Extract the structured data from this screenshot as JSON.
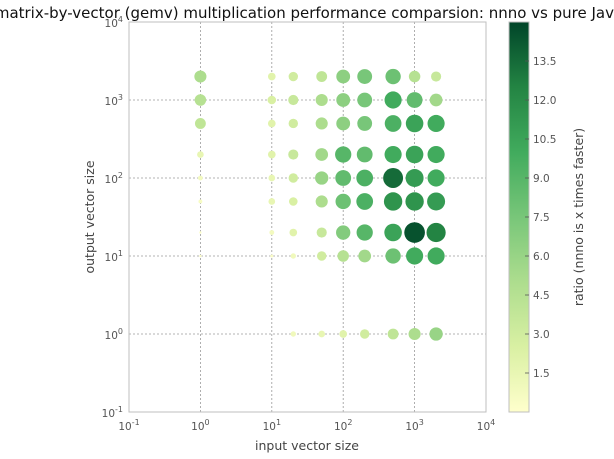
{
  "chart_data": {
    "type": "scatter",
    "title": "matrix-by-vector (gemv) multiplication performance comparsion: nnno vs pure Java",
    "xlabel": "input vector size",
    "ylabel": "output vector size",
    "colorbar_label": "ratio (nnno is x times faster)",
    "xscale": "log",
    "yscale": "log",
    "xlim": [
      0.1,
      10000
    ],
    "ylim": [
      0.1,
      10000
    ],
    "xticks": [
      {
        "value": 0.1,
        "base": "10",
        "exp": "-1"
      },
      {
        "value": 1,
        "base": "10",
        "exp": "0"
      },
      {
        "value": 10,
        "base": "10",
        "exp": "1"
      },
      {
        "value": 100,
        "base": "10",
        "exp": "2"
      },
      {
        "value": 1000,
        "base": "10",
        "exp": "3"
      },
      {
        "value": 10000,
        "base": "10",
        "exp": "4"
      }
    ],
    "yticks": [
      {
        "value": 0.1,
        "base": "10",
        "exp": "-1"
      },
      {
        "value": 1,
        "base": "10",
        "exp": "0"
      },
      {
        "value": 10,
        "base": "10",
        "exp": "1"
      },
      {
        "value": 100,
        "base": "10",
        "exp": "2"
      },
      {
        "value": 1000,
        "base": "10",
        "exp": "3"
      },
      {
        "value": 10000,
        "base": "10",
        "exp": "4"
      }
    ],
    "grid": true,
    "colormap": [
      "#ffffcc",
      "#d9f0a3",
      "#addd8e",
      "#78c679",
      "#41ab5d",
      "#238443",
      "#004529"
    ],
    "color_range": [
      0,
      15
    ],
    "colorbar_ticks": [
      "1.5",
      "3.0",
      "4.5",
      "6.0",
      "7.5",
      "9.0",
      "10.5",
      "12.0",
      "13.5"
    ],
    "x_values": [
      1,
      10,
      20,
      50,
      100,
      200,
      500,
      1000,
      2000
    ],
    "y_values": [
      1,
      10,
      20,
      50,
      100,
      200,
      500,
      1000,
      2000
    ],
    "ratio_grid": [
      [
        null,
        null,
        1.0,
        1.5,
        2.0,
        3.0,
        4.0,
        5.0,
        6.0
      ],
      [
        0.2,
        0.3,
        1.0,
        3.0,
        4.5,
        5.5,
        8.0,
        10.0,
        10.0
      ],
      [
        0.2,
        0.8,
        2.0,
        3.5,
        7.0,
        9.0,
        10.5,
        14.5,
        12.5
      ],
      [
        0.5,
        1.5,
        2.5,
        5.0,
        8.0,
        9.5,
        11.5,
        11.5,
        11.0
      ],
      [
        0.8,
        1.5,
        3.0,
        6.0,
        8.5,
        9.5,
        13.5,
        11.0,
        10.0
      ],
      [
        1.5,
        2.0,
        3.5,
        5.5,
        9.0,
        8.5,
        10.0,
        10.5,
        10.0
      ],
      [
        4.0,
        2.0,
        3.0,
        5.0,
        6.5,
        7.5,
        9.5,
        10.5,
        10.0
      ],
      [
        4.5,
        2.5,
        3.5,
        5.0,
        6.5,
        7.5,
        10.0,
        8.5,
        5.5
      ],
      [
        5.0,
        2.0,
        3.0,
        4.0,
        6.5,
        7.5,
        8.0,
        4.5,
        3.5
      ]
    ]
  }
}
